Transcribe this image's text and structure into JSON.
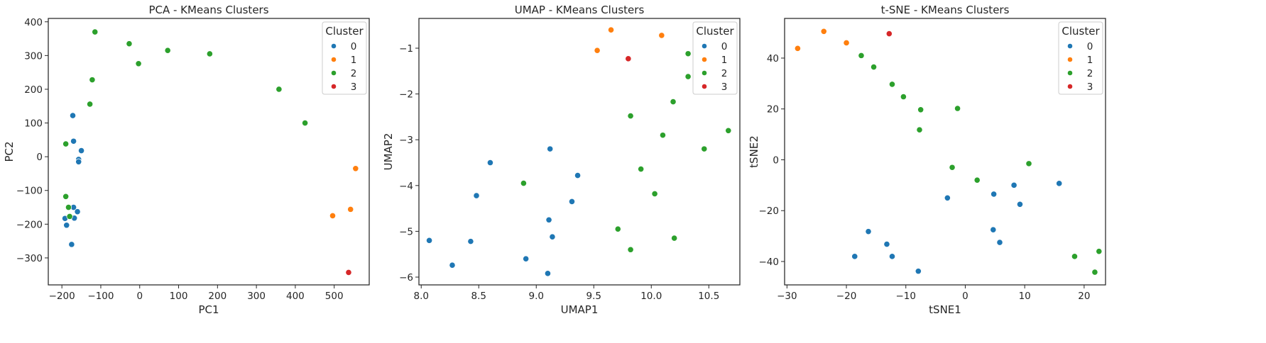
{
  "palette": [
    "#1f77b4",
    "#ff7f0e",
    "#2ca02c",
    "#d62728"
  ],
  "chart_data": [
    {
      "type": "scatter",
      "title": "PCA - KMeans Clusters",
      "xlabel": "PC1",
      "ylabel": "PC2",
      "xlim": [
        -235,
        590
      ],
      "ylim": [
        -380,
        410
      ],
      "xticks": [
        -200,
        -100,
        0,
        100,
        200,
        300,
        400,
        500
      ],
      "yticks": [
        -300,
        -200,
        -100,
        0,
        100,
        200,
        300,
        400
      ],
      "grid": false,
      "legend": {
        "title": "Cluster",
        "placement": "top-right",
        "labels": [
          "0",
          "1",
          "2",
          "3"
        ]
      },
      "series": [
        {
          "name": "0",
          "points": [
            [
              -172,
              122
            ],
            [
              -170,
              46
            ],
            [
              -150,
              18
            ],
            [
              -157,
              -8
            ],
            [
              -157,
              -15
            ],
            [
              -170,
              -150
            ],
            [
              -160,
              -163
            ],
            [
              -168,
              -182
            ],
            [
              -192,
              -183
            ],
            [
              -188,
              -203
            ],
            [
              -175,
              -260
            ]
          ]
        },
        {
          "name": "1",
          "points": [
            [
              555,
              -35
            ],
            [
              542,
              -156
            ],
            [
              496,
              -175
            ]
          ]
        },
        {
          "name": "2",
          "points": [
            [
              -115,
              370
            ],
            [
              -27,
              335
            ],
            [
              -3,
              276
            ],
            [
              72,
              315
            ],
            [
              180,
              305
            ],
            [
              -122,
              228
            ],
            [
              -128,
              156
            ],
            [
              358,
              200
            ],
            [
              425,
              100
            ],
            [
              -190,
              38
            ],
            [
              -190,
              -118
            ],
            [
              -183,
              -150
            ],
            [
              -180,
              -177
            ]
          ]
        },
        {
          "name": "3",
          "points": [
            [
              537,
              -343
            ]
          ]
        }
      ]
    },
    {
      "type": "scatter",
      "title": "UMAP - KMeans Clusters",
      "xlabel": "UMAP1",
      "ylabel": "UMAP2",
      "xlim": [
        7.98,
        10.77
      ],
      "ylim": [
        -6.17,
        -0.35
      ],
      "xticks": [
        8.0,
        8.5,
        9.0,
        9.5,
        10.0,
        10.5
      ],
      "xtick_labels": [
        "8.0",
        "8.5",
        "9.0",
        "9.5",
        "10.0",
        "10.5"
      ],
      "yticks": [
        -6,
        -5,
        -4,
        -3,
        -2,
        -1
      ],
      "grid": false,
      "legend": {
        "title": "Cluster",
        "placement": "top-right",
        "labels": [
          "0",
          "1",
          "2",
          "3"
        ]
      },
      "series": [
        {
          "name": "0",
          "points": [
            [
              8.6,
              -3.5
            ],
            [
              9.12,
              -3.2
            ],
            [
              9.36,
              -3.78
            ],
            [
              8.48,
              -4.22
            ],
            [
              9.31,
              -4.35
            ],
            [
              9.11,
              -4.75
            ],
            [
              8.07,
              -5.2
            ],
            [
              8.43,
              -5.22
            ],
            [
              9.14,
              -5.12
            ],
            [
              8.27,
              -5.74
            ],
            [
              8.91,
              -5.6
            ],
            [
              9.1,
              -5.92
            ]
          ]
        },
        {
          "name": "1",
          "points": [
            [
              9.65,
              -0.6
            ],
            [
              10.09,
              -0.72
            ],
            [
              9.53,
              -1.05
            ]
          ]
        },
        {
          "name": "2",
          "points": [
            [
              10.32,
              -1.12
            ],
            [
              10.32,
              -1.62
            ],
            [
              10.19,
              -2.17
            ],
            [
              9.82,
              -2.48
            ],
            [
              10.1,
              -2.9
            ],
            [
              10.67,
              -2.8
            ],
            [
              10.46,
              -3.2
            ],
            [
              9.91,
              -3.64
            ],
            [
              8.89,
              -3.95
            ],
            [
              10.03,
              -4.18
            ],
            [
              9.71,
              -4.95
            ],
            [
              9.82,
              -5.4
            ],
            [
              10.2,
              -5.15
            ]
          ]
        },
        {
          "name": "3",
          "points": [
            [
              9.8,
              -1.23
            ]
          ]
        }
      ]
    },
    {
      "type": "scatter",
      "title": "t-SNE - KMeans Clusters",
      "xlabel": "tSNE1",
      "ylabel": "tSNE2",
      "xlim": [
        -30.4,
        23.6
      ],
      "ylim": [
        -49.2,
        55.6
      ],
      "xticks": [
        -30,
        -20,
        -10,
        0,
        10,
        20
      ],
      "xtick_labels": [
        "−30",
        "−20",
        "−10",
        "0",
        "10",
        "20"
      ],
      "yticks": [
        -40,
        -20,
        0,
        20,
        40
      ],
      "ytick_labels": [
        "−40",
        "−20",
        "0",
        "20",
        "40"
      ],
      "grid": false,
      "legend": {
        "title": "Cluster",
        "placement": "top-right",
        "labels": [
          "0",
          "1",
          "2",
          "3"
        ]
      },
      "series": [
        {
          "name": "0",
          "points": [
            [
              -3,
              -15
            ],
            [
              4.8,
              -13.5
            ],
            [
              8.2,
              -10
            ],
            [
              9.2,
              -17.5
            ],
            [
              15.8,
              -9.3
            ],
            [
              4.7,
              -27.5
            ],
            [
              5.8,
              -32.5
            ],
            [
              -16.3,
              -28.2
            ],
            [
              -13.2,
              -33.2
            ],
            [
              -12.3,
              -38
            ],
            [
              -18.6,
              -38
            ],
            [
              -7.9,
              -43.8
            ]
          ]
        },
        {
          "name": "1",
          "points": [
            [
              -28.2,
              43.8
            ],
            [
              -23.8,
              50.5
            ],
            [
              -20,
              46
            ]
          ]
        },
        {
          "name": "2",
          "points": [
            [
              -17.5,
              41
            ],
            [
              -15.4,
              36.5
            ],
            [
              -12.3,
              29.7
            ],
            [
              -10.4,
              24.8
            ],
            [
              -7.5,
              19.7
            ],
            [
              -1.3,
              20.2
            ],
            [
              -7.7,
              11.8
            ],
            [
              -2.2,
              -3
            ],
            [
              2,
              -8
            ],
            [
              10.7,
              -1.5
            ],
            [
              18.4,
              -38
            ],
            [
              22.5,
              -36
            ],
            [
              21.8,
              -44.2
            ]
          ]
        },
        {
          "name": "3",
          "points": [
            [
              -12.8,
              49.6
            ]
          ]
        }
      ]
    }
  ]
}
